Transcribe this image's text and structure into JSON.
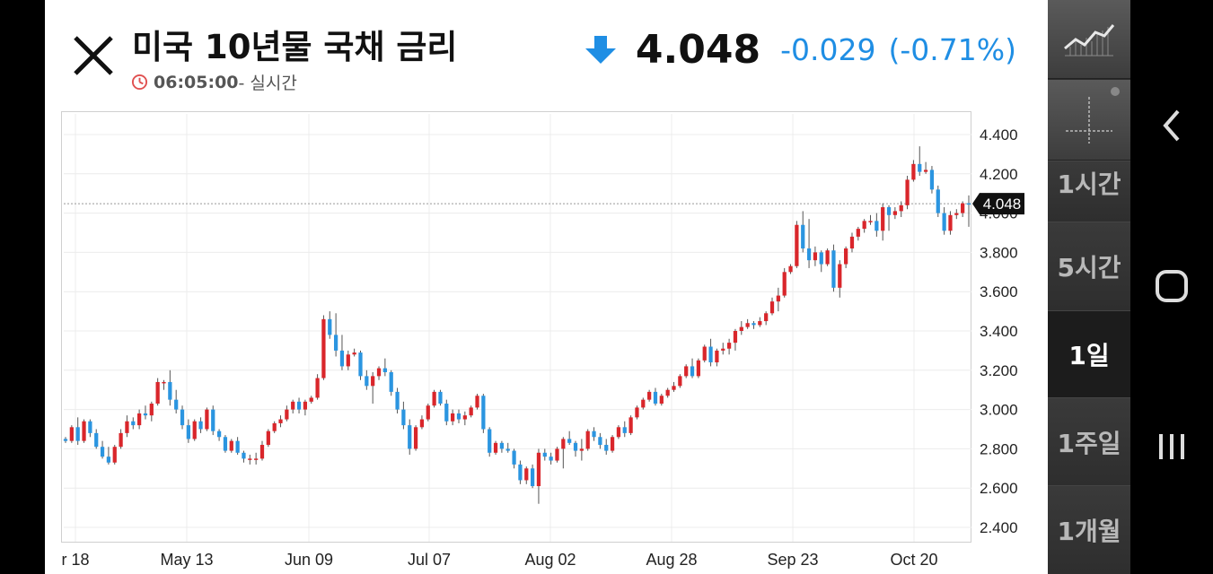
{
  "header": {
    "title": "미국 10년물 국채 금리",
    "time": "06:05:00",
    "time_suffix": " - 실시간",
    "price": "4.048",
    "change": "-0.029",
    "change_pct": "(-0.71%)",
    "icons": {
      "close": "close-icon",
      "clock": "clock-icon",
      "direction": "arrow-down-icon"
    },
    "colors": {
      "down": "#1f8ee4",
      "up": "#d9262b",
      "alert": "#e05050"
    }
  },
  "toolbar": {
    "icons": [
      "line-chart-icon",
      "crosshair-icon"
    ],
    "timeframes": [
      {
        "label": "1시간",
        "active": false
      },
      {
        "label": "5시간",
        "active": false
      },
      {
        "label": "1일",
        "active": true
      },
      {
        "label": "1주일",
        "active": false
      },
      {
        "label": "1개월",
        "active": false
      }
    ]
  },
  "system_nav": {
    "icons": [
      "back-icon",
      "home-icon",
      "recent-apps-icon"
    ]
  },
  "chart_data": {
    "type": "candlestick",
    "title": "",
    "xlabel": "",
    "ylabel": "",
    "ylim": [
      2.35,
      4.5
    ],
    "y_ticks": [
      "4.400",
      "4.200",
      "4.000",
      "3.800",
      "3.600",
      "3.400",
      "3.200",
      "3.000",
      "2.800",
      "2.600",
      "2.400"
    ],
    "x_ticks": [
      "r 18",
      "May 13",
      "Jun 09",
      "Jul 07",
      "Aug 02",
      "Aug 28",
      "Sep 23",
      "Oct 20"
    ],
    "current_price_label": "4.048",
    "current_price": 4.048,
    "grid": true,
    "colors": {
      "up": "#d9262b",
      "down": "#2b95e0",
      "grid": "#ececec"
    },
    "candles_ohlc": [
      [
        2.85,
        2.86,
        2.83,
        2.84
      ],
      [
        2.84,
        2.92,
        2.83,
        2.91
      ],
      [
        2.91,
        2.96,
        2.82,
        2.84
      ],
      [
        2.84,
        2.95,
        2.83,
        2.94
      ],
      [
        2.94,
        2.95,
        2.86,
        2.88
      ],
      [
        2.88,
        2.9,
        2.8,
        2.81
      ],
      [
        2.81,
        2.84,
        2.75,
        2.76
      ],
      [
        2.76,
        2.81,
        2.72,
        2.73
      ],
      [
        2.73,
        2.82,
        2.72,
        2.81
      ],
      [
        2.81,
        2.9,
        2.8,
        2.88
      ],
      [
        2.88,
        2.97,
        2.86,
        2.94
      ],
      [
        2.94,
        2.96,
        2.9,
        2.92
      ],
      [
        2.92,
        3.0,
        2.9,
        2.98
      ],
      [
        2.98,
        3.02,
        2.95,
        2.97
      ],
      [
        2.97,
        3.04,
        2.94,
        3.03
      ],
      [
        3.03,
        3.16,
        3.02,
        3.14
      ],
      [
        3.14,
        3.15,
        3.1,
        3.14
      ],
      [
        3.14,
        3.2,
        3.02,
        3.05
      ],
      [
        3.05,
        3.1,
        2.98,
        3.0
      ],
      [
        3.0,
        3.02,
        2.9,
        2.92
      ],
      [
        2.92,
        2.95,
        2.83,
        2.85
      ],
      [
        2.85,
        2.95,
        2.84,
        2.94
      ],
      [
        2.94,
        2.96,
        2.88,
        2.9
      ],
      [
        2.9,
        3.01,
        2.89,
        3.0
      ],
      [
        3.0,
        3.02,
        2.87,
        2.89
      ],
      [
        2.89,
        2.9,
        2.84,
        2.86
      ],
      [
        2.86,
        2.87,
        2.78,
        2.79
      ],
      [
        2.79,
        2.85,
        2.78,
        2.84
      ],
      [
        2.84,
        2.86,
        2.77,
        2.78
      ],
      [
        2.78,
        2.79,
        2.73,
        2.75
      ],
      [
        2.75,
        2.77,
        2.72,
        2.75
      ],
      [
        2.75,
        2.78,
        2.72,
        2.75
      ],
      [
        2.75,
        2.84,
        2.74,
        2.82
      ],
      [
        2.82,
        2.9,
        2.81,
        2.89
      ],
      [
        2.89,
        2.94,
        2.88,
        2.93
      ],
      [
        2.93,
        2.97,
        2.91,
        2.95
      ],
      [
        2.95,
        3.02,
        2.94,
        3.0
      ],
      [
        3.0,
        3.05,
        2.98,
        3.04
      ],
      [
        3.04,
        3.06,
        2.98,
        3.0
      ],
      [
        3.0,
        3.05,
        2.97,
        3.04
      ],
      [
        3.04,
        3.07,
        3.03,
        3.06
      ],
      [
        3.06,
        3.18,
        3.05,
        3.16
      ],
      [
        3.16,
        3.48,
        3.15,
        3.46
      ],
      [
        3.46,
        3.5,
        3.36,
        3.38
      ],
      [
        3.38,
        3.49,
        3.27,
        3.3
      ],
      [
        3.3,
        3.38,
        3.2,
        3.22
      ],
      [
        3.22,
        3.3,
        3.2,
        3.28
      ],
      [
        3.28,
        3.31,
        3.27,
        3.29
      ],
      [
        3.29,
        3.3,
        3.15,
        3.17
      ],
      [
        3.17,
        3.2,
        3.1,
        3.12
      ],
      [
        3.12,
        3.19,
        3.03,
        3.17
      ],
      [
        3.17,
        3.22,
        3.15,
        3.21
      ],
      [
        3.21,
        3.26,
        3.17,
        3.19
      ],
      [
        3.19,
        3.2,
        3.07,
        3.09
      ],
      [
        3.09,
        3.11,
        2.98,
        3.0
      ],
      [
        3.0,
        3.04,
        2.9,
        2.92
      ],
      [
        2.92,
        2.95,
        2.77,
        2.8
      ],
      [
        2.8,
        2.92,
        2.79,
        2.91
      ],
      [
        2.91,
        2.97,
        2.9,
        2.95
      ],
      [
        2.95,
        3.03,
        2.94,
        3.02
      ],
      [
        3.02,
        3.1,
        3.01,
        3.09
      ],
      [
        3.09,
        3.1,
        3.02,
        3.03
      ],
      [
        3.03,
        3.05,
        2.92,
        2.94
      ],
      [
        2.94,
        3.0,
        2.92,
        2.98
      ],
      [
        2.98,
        3.0,
        2.93,
        2.95
      ],
      [
        2.95,
        2.99,
        2.92,
        2.97
      ],
      [
        2.97,
        3.02,
        2.96,
        3.01
      ],
      [
        3.01,
        3.08,
        3.0,
        3.07
      ],
      [
        3.07,
        3.08,
        2.88,
        2.9
      ],
      [
        2.9,
        2.91,
        2.76,
        2.78
      ],
      [
        2.78,
        2.84,
        2.77,
        2.83
      ],
      [
        2.83,
        2.84,
        2.78,
        2.8
      ],
      [
        2.8,
        2.83,
        2.78,
        2.79
      ],
      [
        2.79,
        2.8,
        2.7,
        2.72
      ],
      [
        2.72,
        2.74,
        2.62,
        2.64
      ],
      [
        2.64,
        2.71,
        2.62,
        2.7
      ],
      [
        2.7,
        2.72,
        2.6,
        2.61
      ],
      [
        2.61,
        2.8,
        2.52,
        2.78
      ],
      [
        2.78,
        2.8,
        2.74,
        2.76
      ],
      [
        2.76,
        2.78,
        2.72,
        2.74
      ],
      [
        2.74,
        2.81,
        2.73,
        2.8
      ],
      [
        2.8,
        2.86,
        2.7,
        2.85
      ],
      [
        2.85,
        2.89,
        2.82,
        2.83
      ],
      [
        2.83,
        2.84,
        2.76,
        2.79
      ],
      [
        2.79,
        2.85,
        2.74,
        2.8
      ],
      [
        2.8,
        2.9,
        2.79,
        2.89
      ],
      [
        2.89,
        2.91,
        2.84,
        2.86
      ],
      [
        2.86,
        2.88,
        2.8,
        2.82
      ],
      [
        2.82,
        2.85,
        2.77,
        2.79
      ],
      [
        2.79,
        2.87,
        2.78,
        2.86
      ],
      [
        2.86,
        2.92,
        2.85,
        2.91
      ],
      [
        2.91,
        2.94,
        2.86,
        2.88
      ],
      [
        2.88,
        2.97,
        2.87,
        2.96
      ],
      [
        2.96,
        3.02,
        2.95,
        3.01
      ],
      [
        3.01,
        3.06,
        3.0,
        3.05
      ],
      [
        3.05,
        3.1,
        3.04,
        3.09
      ],
      [
        3.09,
        3.11,
        3.02,
        3.03
      ],
      [
        3.03,
        3.08,
        3.02,
        3.07
      ],
      [
        3.07,
        3.11,
        3.06,
        3.1
      ],
      [
        3.1,
        3.14,
        3.09,
        3.12
      ],
      [
        3.12,
        3.18,
        3.11,
        3.17
      ],
      [
        3.17,
        3.23,
        3.16,
        3.22
      ],
      [
        3.22,
        3.26,
        3.16,
        3.17
      ],
      [
        3.17,
        3.26,
        3.16,
        3.25
      ],
      [
        3.25,
        3.33,
        3.24,
        3.32
      ],
      [
        3.32,
        3.36,
        3.22,
        3.24
      ],
      [
        3.24,
        3.31,
        3.22,
        3.3
      ],
      [
        3.3,
        3.34,
        3.28,
        3.31
      ],
      [
        3.31,
        3.36,
        3.28,
        3.34
      ],
      [
        3.34,
        3.41,
        3.3,
        3.4
      ],
      [
        3.4,
        3.45,
        3.38,
        3.42
      ],
      [
        3.42,
        3.46,
        3.41,
        3.44
      ],
      [
        3.44,
        3.45,
        3.41,
        3.43
      ],
      [
        3.43,
        3.47,
        3.42,
        3.45
      ],
      [
        3.45,
        3.5,
        3.43,
        3.49
      ],
      [
        3.49,
        3.57,
        3.48,
        3.55
      ],
      [
        3.55,
        3.62,
        3.5,
        3.58
      ],
      [
        3.58,
        3.72,
        3.57,
        3.7
      ],
      [
        3.7,
        3.74,
        3.69,
        3.73
      ],
      [
        3.73,
        3.96,
        3.72,
        3.94
      ],
      [
        3.94,
        4.01,
        3.8,
        3.82
      ],
      [
        3.82,
        3.97,
        3.72,
        3.76
      ],
      [
        3.76,
        3.83,
        3.73,
        3.8
      ],
      [
        3.8,
        3.81,
        3.7,
        3.74
      ],
      [
        3.74,
        3.82,
        3.73,
        3.81
      ],
      [
        3.81,
        3.84,
        3.6,
        3.62
      ],
      [
        3.62,
        3.76,
        3.57,
        3.74
      ],
      [
        3.74,
        3.83,
        3.72,
        3.82
      ],
      [
        3.82,
        3.9,
        3.8,
        3.88
      ],
      [
        3.88,
        3.93,
        3.86,
        3.92
      ],
      [
        3.92,
        3.97,
        3.9,
        3.96
      ],
      [
        3.96,
        3.99,
        3.94,
        3.96
      ],
      [
        3.96,
        4.0,
        3.88,
        3.91
      ],
      [
        3.91,
        4.05,
        3.86,
        4.03
      ],
      [
        4.03,
        4.04,
        3.91,
        3.99
      ],
      [
        3.99,
        4.03,
        3.97,
        4.01
      ],
      [
        4.01,
        4.06,
        3.98,
        4.04
      ],
      [
        4.04,
        4.19,
        4.02,
        4.17
      ],
      [
        4.17,
        4.27,
        4.16,
        4.25
      ],
      [
        4.25,
        4.34,
        4.19,
        4.21
      ],
      [
        4.21,
        4.26,
        4.2,
        4.22
      ],
      [
        4.22,
        4.24,
        4.1,
        4.12
      ],
      [
        4.12,
        4.14,
        3.98,
        4.0
      ],
      [
        4.0,
        4.03,
        3.89,
        3.91
      ],
      [
        3.91,
        4.01,
        3.89,
        3.99
      ],
      [
        3.99,
        4.02,
        3.97,
        4.0
      ],
      [
        4.0,
        4.06,
        3.98,
        4.05
      ],
      [
        4.05,
        4.09,
        3.93,
        4.048
      ]
    ]
  }
}
